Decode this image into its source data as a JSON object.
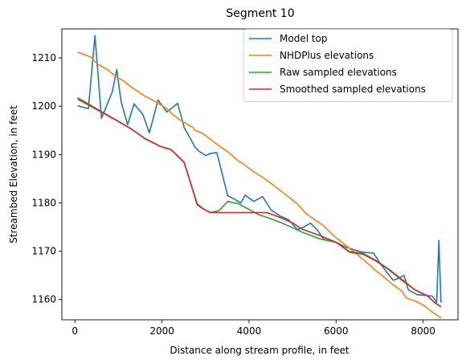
{
  "chart_data": {
    "type": "line",
    "title": "Segment 10",
    "xlabel": "Distance along stream profile, in feet",
    "ylabel": "Streambed Elevation, in feet",
    "xlim": [
      -300,
      8800
    ],
    "ylim": [
      1155.8,
      1216
    ],
    "xticks": [
      0,
      2000,
      4000,
      6000,
      8000
    ],
    "yticks": [
      1160,
      1170,
      1180,
      1190,
      1200,
      1210
    ],
    "grid": false,
    "legend_position": "top-right",
    "series": [
      {
        "name": "Model top",
        "color": "#1f77b4",
        "x": [
          60,
          310,
          460,
          610,
          860,
          960,
          1060,
          1210,
          1360,
          1560,
          1710,
          1910,
          2110,
          2360,
          2510,
          2610,
          2760,
          2860,
          3010,
          3110,
          3260,
          3510,
          3660,
          3810,
          3910,
          4110,
          4310,
          4510,
          4710,
          4910,
          5110,
          5260,
          5410,
          5560,
          5710,
          6010,
          6210,
          6410,
          6610,
          6860,
          7010,
          7160,
          7310,
          7410,
          7560,
          7660,
          7860,
          8110,
          8210,
          8310,
          8360,
          8410
        ],
        "y": [
          1200.1,
          1199.5,
          1214.6,
          1197.5,
          1203.0,
          1207.6,
          1201.0,
          1196.2,
          1200.5,
          1198.3,
          1194.5,
          1201.3,
          1198.8,
          1200.6,
          1195.6,
          1194.0,
          1191.5,
          1190.6,
          1189.8,
          1190.2,
          1190.4,
          1181.5,
          1180.8,
          1180.0,
          1181.6,
          1180.3,
          1181.3,
          1178.5,
          1177.3,
          1176.5,
          1174.5,
          1175.0,
          1175.8,
          1174.5,
          1172.5,
          1171.8,
          1170.9,
          1170.3,
          1169.8,
          1169.6,
          1167.5,
          1165.7,
          1164.0,
          1164.3,
          1165.0,
          1162.0,
          1161.0,
          1160.8,
          1160.7,
          1159.4,
          1172.2,
          1159.4
        ]
      },
      {
        "name": "NHDPlus elevations",
        "color": "#ff7f0e",
        "x": [
          60,
          210,
          360,
          510,
          760,
          960,
          1110,
          1260,
          1410,
          1610,
          1760,
          1910,
          2110,
          2260,
          2410,
          2560,
          2710,
          2760,
          2910,
          3110,
          3310,
          3510,
          3710,
          3910,
          4110,
          4310,
          4510,
          4710,
          4910,
          5110,
          5310,
          5510,
          5710,
          5910,
          6110,
          6310,
          6510,
          6710,
          6910,
          7110,
          7310,
          7510,
          7610,
          7810,
          8010,
          8210,
          8310,
          8410
        ],
        "y": [
          1211.2,
          1210.7,
          1210.2,
          1208.8,
          1207.5,
          1206.0,
          1205.3,
          1204.2,
          1203.3,
          1202.1,
          1201.4,
          1200.6,
          1199.5,
          1198.2,
          1197.2,
          1196.4,
          1195.6,
          1195.0,
          1194.5,
          1193.2,
          1191.8,
          1190.6,
          1189.0,
          1187.8,
          1186.4,
          1185.3,
          1184.0,
          1182.6,
          1181.2,
          1179.8,
          1177.8,
          1176.5,
          1175.3,
          1173.5,
          1172.0,
          1170.6,
          1169.1,
          1167.6,
          1166.0,
          1164.6,
          1163.0,
          1161.8,
          1160.3,
          1159.7,
          1158.8,
          1157.4,
          1156.8,
          1156.2
        ]
      },
      {
        "name": "Raw sampled elevations",
        "color": "#2ca02c",
        "x": [
          60,
          1010,
          1310,
          1610,
          1960,
          2210,
          2510,
          2810,
          2960,
          3110,
          3310,
          3510,
          3760,
          4010,
          4210,
          4410,
          4710,
          5010,
          5210,
          5610,
          6010,
          6310,
          6610,
          6910,
          7210,
          7510,
          7810,
          8110,
          8260,
          8410
        ],
        "y": [
          1201.8,
          1196.8,
          1195.2,
          1193.3,
          1191.7,
          1191.0,
          1188.4,
          1179.8,
          1178.7,
          1178.0,
          1178.4,
          1180.3,
          1179.8,
          1178.6,
          1177.6,
          1177.0,
          1176.0,
          1174.8,
          1174.0,
          1172.6,
          1171.8,
          1169.9,
          1169.6,
          1168.1,
          1166.3,
          1164.2,
          1162.0,
          1160.7,
          1159.4,
          1158.5
        ]
      },
      {
        "name": "Smoothed sampled elevations",
        "color": "#d62728",
        "x": [
          60,
          1010,
          1310,
          1610,
          1960,
          2210,
          2510,
          2810,
          2960,
          3110,
          4410,
          4710,
          5010,
          5210,
          5610,
          6010,
          6310,
          6610,
          6910,
          7210,
          7510,
          7810,
          8110,
          8260,
          8410
        ],
        "y": [
          1201.5,
          1196.8,
          1195.2,
          1193.3,
          1191.7,
          1191.0,
          1188.4,
          1179.6,
          1178.7,
          1178.0,
          1178.0,
          1177.0,
          1175.8,
          1174.6,
          1173.3,
          1171.8,
          1169.8,
          1169.4,
          1168.0,
          1166.2,
          1164.0,
          1162.0,
          1160.7,
          1159.4,
          1158.5
        ]
      }
    ]
  }
}
